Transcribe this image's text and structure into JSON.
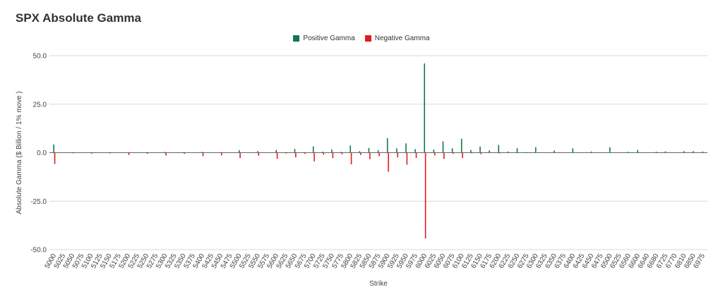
{
  "chart_data": {
    "type": "bar",
    "title": "SPX Absolute Gamma",
    "xlabel": "Strike",
    "ylabel": "Absolute Gamma ($ Billion / 1% move )",
    "ylim": [
      -50,
      50
    ],
    "yticks": [
      "50.0",
      "25.0",
      "0.0",
      "-25.0",
      "-50.0"
    ],
    "xtick_labels": [
      "5000",
      "5025",
      "5050",
      "5075",
      "5100",
      "5125",
      "5150",
      "5175",
      "5200",
      "5225",
      "5250",
      "5275",
      "5300",
      "5325",
      "5350",
      "5375",
      "5400",
      "5425",
      "5450",
      "5475",
      "5500",
      "5525",
      "5550",
      "5575",
      "5600",
      "5625",
      "5650",
      "5675",
      "5700",
      "5725",
      "5750",
      "5775",
      "5800",
      "5825",
      "5850",
      "5875",
      "5900",
      "5925",
      "5950",
      "5975",
      "6000",
      "6025",
      "6050",
      "6075",
      "6100",
      "6125",
      "6150",
      "6175",
      "6200",
      "6225",
      "6250",
      "6275",
      "6300",
      "6325",
      "6350",
      "6375",
      "6400",
      "6425",
      "6450",
      "6475",
      "6500",
      "6525",
      "6560",
      "6600",
      "6640",
      "6680",
      "6725",
      "6770",
      "6810",
      "6850",
      "6975"
    ],
    "grid": true,
    "legend_position": "top",
    "colors": {
      "positive": "#10784e",
      "negative": "#e31b1b"
    },
    "series": [
      {
        "name": "Positive Gamma",
        "points": [
          [
            "5000",
            4.2
          ],
          [
            "5050",
            0.2
          ],
          [
            "5100",
            0.2
          ],
          [
            "5150",
            0.2
          ],
          [
            "5200",
            0.2
          ],
          [
            "5250",
            0.3
          ],
          [
            "5300",
            0.4
          ],
          [
            "5350",
            0.3
          ],
          [
            "5400",
            0.4
          ],
          [
            "5450",
            0.3
          ],
          [
            "5500",
            1.3
          ],
          [
            "5550",
            0.8
          ],
          [
            "5600",
            1.4
          ],
          [
            "5625",
            0.3
          ],
          [
            "5650",
            1.9
          ],
          [
            "5675",
            0.3
          ],
          [
            "5700",
            3.2
          ],
          [
            "5725",
            0.5
          ],
          [
            "5750",
            1.6
          ],
          [
            "5775",
            0.4
          ],
          [
            "5800",
            3.7
          ],
          [
            "5825",
            0.8
          ],
          [
            "5850",
            2.4
          ],
          [
            "5875",
            1.3
          ],
          [
            "5900",
            7.5
          ],
          [
            "5925",
            2.2
          ],
          [
            "5950",
            4.8
          ],
          [
            "5975",
            1.8
          ],
          [
            "6000",
            46.0
          ],
          [
            "6025",
            1.6
          ],
          [
            "6050",
            5.8
          ],
          [
            "6075",
            2.2
          ],
          [
            "6100",
            7.2
          ],
          [
            "6125",
            1.4
          ],
          [
            "6150",
            3.2
          ],
          [
            "6175",
            1.2
          ],
          [
            "6200",
            4.0
          ],
          [
            "6225",
            0.6
          ],
          [
            "6250",
            2.3
          ],
          [
            "6275",
            0.3
          ],
          [
            "6300",
            2.8
          ],
          [
            "6350",
            1.1
          ],
          [
            "6400",
            2.2
          ],
          [
            "6450",
            0.6
          ],
          [
            "6500",
            2.8
          ],
          [
            "6560",
            0.5
          ],
          [
            "6600",
            1.4
          ],
          [
            "6680",
            0.5
          ],
          [
            "6725",
            0.7
          ],
          [
            "6810",
            0.8
          ],
          [
            "6850",
            0.8
          ],
          [
            "6975",
            0.6
          ]
        ]
      },
      {
        "name": "Negative Gamma",
        "points": [
          [
            "5000",
            -5.8
          ],
          [
            "5050",
            -0.3
          ],
          [
            "5100",
            -0.5
          ],
          [
            "5150",
            -0.2
          ],
          [
            "5200",
            -1.2
          ],
          [
            "5250",
            -0.6
          ],
          [
            "5300",
            -1.5
          ],
          [
            "5350",
            -0.6
          ],
          [
            "5400",
            -1.8
          ],
          [
            "5450",
            -1.4
          ],
          [
            "5500",
            -2.8
          ],
          [
            "5550",
            -1.6
          ],
          [
            "5600",
            -3.2
          ],
          [
            "5625",
            -0.4
          ],
          [
            "5650",
            -2.4
          ],
          [
            "5675",
            -0.6
          ],
          [
            "5700",
            -4.5
          ],
          [
            "5725",
            -1.0
          ],
          [
            "5750",
            -2.8
          ],
          [
            "5775",
            -0.8
          ],
          [
            "5800",
            -6.0
          ],
          [
            "5825",
            -1.2
          ],
          [
            "5850",
            -3.4
          ],
          [
            "5875",
            -1.8
          ],
          [
            "5900",
            -9.8
          ],
          [
            "5925",
            -2.4
          ],
          [
            "5950",
            -6.2
          ],
          [
            "5975",
            -2.7
          ],
          [
            "6000",
            -44.2
          ],
          [
            "6025",
            -1.4
          ],
          [
            "6050",
            -3.2
          ],
          [
            "6075",
            -0.6
          ],
          [
            "6100",
            -2.8
          ],
          [
            "6125",
            -0.2
          ],
          [
            "6150",
            -0.8
          ],
          [
            "6200",
            -0.4
          ]
        ]
      }
    ]
  }
}
